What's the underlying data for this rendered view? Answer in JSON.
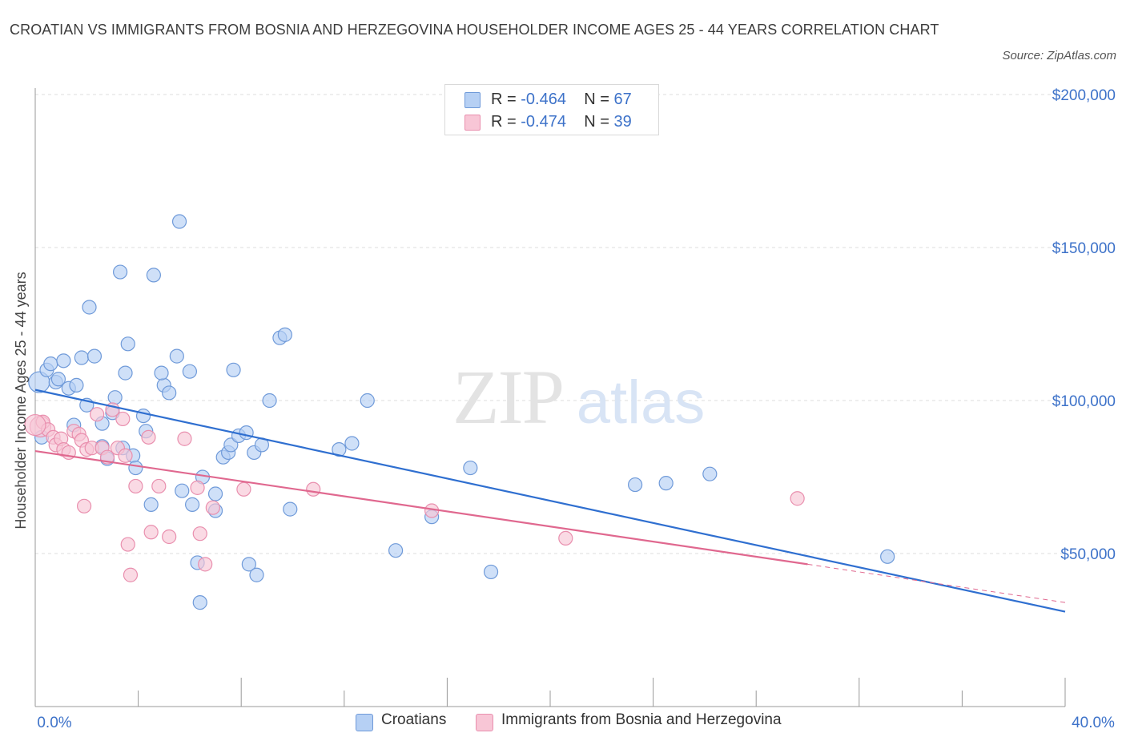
{
  "header": {
    "title": "CROATIAN VS IMMIGRANTS FROM BOSNIA AND HERZEGOVINA HOUSEHOLDER INCOME AGES 25 - 44 YEARS CORRELATION CHART",
    "source": "Source: ZipAtlas.com"
  },
  "watermark": {
    "zip": "ZIP",
    "atlas": "atlas"
  },
  "legend_top": {
    "rows": [
      {
        "r_label": "R = ",
        "r_value": "-0.464",
        "n_label": "N = ",
        "n_value": "67"
      },
      {
        "r_label": "R = ",
        "r_value": "-0.474",
        "n_label": "N = ",
        "n_value": "39"
      }
    ]
  },
  "colors": {
    "croatians_fill": "#b6d0f4",
    "croatians_stroke": "#6f9ad9",
    "croatians_line": "#2f6fd0",
    "bosnia_fill": "#f8c6d6",
    "bosnia_stroke": "#e98fae",
    "bosnia_line": "#e0688f",
    "axis_label": "#3d72c9",
    "grid": "#dcdcdc"
  },
  "chart_data": {
    "type": "scatter",
    "title": "CROATIAN VS IMMIGRANTS FROM BOSNIA AND HERZEGOVINA HOUSEHOLDER INCOME AGES 25 - 44 YEARS CORRELATION CHART",
    "xlabel": "",
    "ylabel": "Householder Income Ages 25 - 44 years",
    "xlim": [
      0,
      40
    ],
    "ylim": [
      0,
      200000
    ],
    "x_tick_labels": [
      "0.0%",
      "40.0%"
    ],
    "y_ticks": [
      50000,
      100000,
      150000,
      200000
    ],
    "y_tick_labels": [
      "$50,000",
      "$100,000",
      "$150,000",
      "$200,000"
    ],
    "grid": true,
    "legend": "bottom-center",
    "series": [
      {
        "name": "Croatians",
        "r": -0.464,
        "n": 67,
        "trend": {
          "x": [
            0,
            40
          ],
          "y": [
            103500,
            31000
          ]
        },
        "points": [
          [
            0.15,
            106000
          ],
          [
            0.25,
            88000
          ],
          [
            0.45,
            110000
          ],
          [
            0.6,
            112000
          ],
          [
            0.8,
            106000
          ],
          [
            0.9,
            107000
          ],
          [
            1.1,
            113000
          ],
          [
            1.3,
            104000
          ],
          [
            1.6,
            105000
          ],
          [
            1.8,
            114000
          ],
          [
            2.0,
            98500
          ],
          [
            2.1,
            130500
          ],
          [
            2.3,
            114500
          ],
          [
            1.5,
            92000
          ],
          [
            2.6,
            85000
          ],
          [
            2.6,
            92500
          ],
          [
            2.8,
            81000
          ],
          [
            3.0,
            96000
          ],
          [
            3.1,
            101000
          ],
          [
            3.3,
            142000
          ],
          [
            3.4,
            84500
          ],
          [
            3.5,
            109000
          ],
          [
            3.8,
            82000
          ],
          [
            3.9,
            78000
          ],
          [
            3.6,
            118500
          ],
          [
            4.2,
            95000
          ],
          [
            4.3,
            90000
          ],
          [
            4.6,
            141000
          ],
          [
            4.5,
            66000
          ],
          [
            5.0,
            105000
          ],
          [
            4.9,
            109000
          ],
          [
            5.2,
            102500
          ],
          [
            5.5,
            114500
          ],
          [
            5.6,
            158500
          ],
          [
            5.7,
            70500
          ],
          [
            6.0,
            109500
          ],
          [
            6.1,
            66000
          ],
          [
            6.3,
            47000
          ],
          [
            6.4,
            34000
          ],
          [
            6.5,
            75000
          ],
          [
            7.0,
            64000
          ],
          [
            7.0,
            69500
          ],
          [
            7.3,
            81500
          ],
          [
            7.5,
            83000
          ],
          [
            7.6,
            85500
          ],
          [
            7.7,
            110000
          ],
          [
            7.9,
            88500
          ],
          [
            8.2,
            89500
          ],
          [
            8.3,
            46500
          ],
          [
            8.5,
            83000
          ],
          [
            8.6,
            43000
          ],
          [
            8.8,
            85500
          ],
          [
            9.1,
            100000
          ],
          [
            9.5,
            120500
          ],
          [
            9.7,
            121500
          ],
          [
            9.9,
            64500
          ],
          [
            11.8,
            84000
          ],
          [
            12.3,
            86000
          ],
          [
            12.9,
            100000
          ],
          [
            14.0,
            51000
          ],
          [
            15.4,
            62000
          ],
          [
            16.9,
            78000
          ],
          [
            17.7,
            44000
          ],
          [
            23.3,
            72500
          ],
          [
            24.5,
            73000
          ],
          [
            26.2,
            76000
          ],
          [
            33.1,
            49000
          ]
        ]
      },
      {
        "name": "Immigrants from Bosnia and Herzegovina",
        "r": -0.474,
        "n": 39,
        "trend": {
          "x": [
            0,
            30
          ],
          "y": [
            83500,
            46500
          ]
        },
        "trend_extension": {
          "x": [
            30,
            40
          ],
          "y": [
            46500,
            34000
          ]
        },
        "points": [
          [
            0.2,
            91500
          ],
          [
            0.3,
            93000
          ],
          [
            0.5,
            90500
          ],
          [
            0.7,
            88000
          ],
          [
            0.8,
            85500
          ],
          [
            1.0,
            87500
          ],
          [
            1.1,
            84000
          ],
          [
            1.3,
            83000
          ],
          [
            1.5,
            90000
          ],
          [
            1.7,
            89000
          ],
          [
            1.8,
            87000
          ],
          [
            1.9,
            65500
          ],
          [
            2.0,
            84000
          ],
          [
            2.2,
            84500
          ],
          [
            2.4,
            95500
          ],
          [
            2.6,
            84500
          ],
          [
            2.8,
            81500
          ],
          [
            3.0,
            97000
          ],
          [
            3.2,
            84500
          ],
          [
            3.4,
            94000
          ],
          [
            3.5,
            82000
          ],
          [
            3.6,
            53000
          ],
          [
            3.7,
            43000
          ],
          [
            3.9,
            72000
          ],
          [
            4.4,
            88000
          ],
          [
            4.5,
            57000
          ],
          [
            4.8,
            72000
          ],
          [
            5.2,
            55500
          ],
          [
            5.8,
            87500
          ],
          [
            6.3,
            71500
          ],
          [
            6.4,
            56500
          ],
          [
            6.6,
            46500
          ],
          [
            6.9,
            65000
          ],
          [
            8.1,
            71000
          ],
          [
            10.8,
            71000
          ],
          [
            15.4,
            64000
          ],
          [
            20.6,
            55000
          ],
          [
            29.6,
            68000
          ],
          [
            0.0,
            92000
          ]
        ]
      }
    ]
  },
  "bottom_legend": {
    "items": [
      {
        "label": "Croatians"
      },
      {
        "label": "Immigrants from Bosnia and Herzegovina"
      }
    ]
  }
}
